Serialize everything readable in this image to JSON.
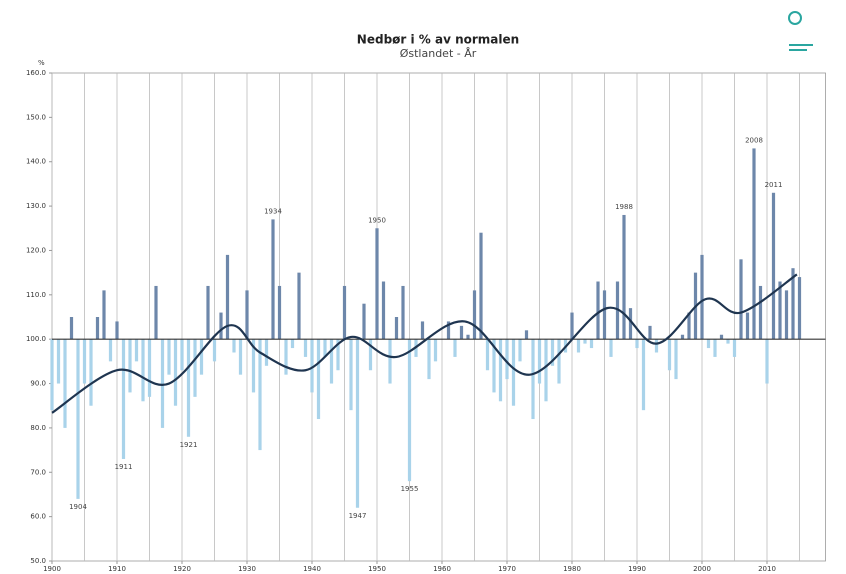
{
  "chart_data": {
    "type": "bar",
    "title": "Nedbør i % av normalen",
    "subtitle": "Østlandet - År",
    "y_label": "%",
    "x": [
      1900,
      1901,
      1902,
      1903,
      1904,
      1905,
      1906,
      1907,
      1908,
      1909,
      1910,
      1911,
      1912,
      1913,
      1914,
      1915,
      1916,
      1917,
      1918,
      1919,
      1920,
      1921,
      1922,
      1923,
      1924,
      1925,
      1926,
      1927,
      1928,
      1929,
      1930,
      1931,
      1932,
      1933,
      1934,
      1935,
      1936,
      1937,
      1938,
      1939,
      1940,
      1941,
      1942,
      1943,
      1944,
      1945,
      1946,
      1947,
      1948,
      1949,
      1950,
      1951,
      1952,
      1953,
      1954,
      1955,
      1956,
      1957,
      1958,
      1959,
      1960,
      1961,
      1962,
      1963,
      1964,
      1965,
      1966,
      1967,
      1968,
      1969,
      1970,
      1971,
      1972,
      1973,
      1974,
      1975,
      1976,
      1977,
      1978,
      1979,
      1980,
      1981,
      1982,
      1983,
      1984,
      1985,
      1986,
      1987,
      1988,
      1989,
      1990,
      1991,
      1992,
      1993,
      1994,
      1995,
      1996,
      1997,
      1998,
      1999,
      2000,
      2001,
      2002,
      2003,
      2004,
      2005,
      2006,
      2007,
      2008,
      2009,
      2010,
      2011,
      2012,
      2013,
      2014,
      2015
    ],
    "values": [
      84,
      90,
      80,
      105,
      64,
      90,
      85,
      105,
      111,
      95,
      104,
      73,
      88,
      95,
      86,
      87,
      112,
      80,
      92,
      85,
      93,
      78,
      87,
      92,
      112,
      95,
      106,
      119,
      97,
      92,
      111,
      88,
      75,
      94,
      127,
      112,
      92,
      98,
      115,
      96,
      88,
      82,
      96,
      90,
      93,
      112,
      84,
      62,
      108,
      93,
      125,
      113,
      90,
      105,
      112,
      68,
      96,
      104,
      91,
      95,
      100,
      104,
      96,
      103,
      101,
      111,
      124,
      93,
      88,
      86,
      91,
      85,
      95,
      102,
      82,
      90,
      86,
      94,
      90,
      97,
      106,
      97,
      99,
      98,
      113,
      111,
      96,
      113,
      128,
      107,
      98,
      84,
      103,
      97,
      100,
      93,
      91,
      101,
      106,
      115,
      119,
      98,
      96,
      101,
      99,
      96,
      118,
      106,
      143,
      112,
      90,
      133,
      113,
      111,
      116,
      114
    ],
    "baseline": 100,
    "positive_color": "#6d87aa",
    "negative_color": "#a9d3ea",
    "trend": {
      "color": "#1f3550",
      "x": [
        1900,
        1910,
        1918,
        1927,
        1932,
        1939,
        1946,
        1953,
        1963.5,
        1973.5,
        1985.4,
        1993,
        2000.5,
        2006,
        2014.6
      ],
      "values": [
        83.4,
        93,
        90,
        103,
        97,
        93,
        100.5,
        96,
        104,
        92,
        107,
        99,
        109,
        106,
        114.6
      ]
    },
    "annotations": [
      1904,
      1911,
      1921,
      1934,
      1947,
      1950,
      1955,
      1988,
      2008,
      2011
    ],
    "xlim": [
      1900,
      2019
    ],
    "ylim": [
      50,
      160
    ],
    "xticks": [
      1900,
      1910,
      1920,
      1930,
      1940,
      1950,
      1960,
      1970,
      1980,
      1990,
      2000,
      2010
    ],
    "xgrid": [
      1900,
      1905,
      1910,
      1915,
      1920,
      1925,
      1930,
      1935,
      1940,
      1945,
      1950,
      1955,
      1960,
      1965,
      1970,
      1975,
      1980,
      1985,
      1990,
      1995,
      2000,
      2005,
      2010,
      2015
    ],
    "yticks": [
      {
        "value": 50,
        "label": "50.0"
      },
      {
        "value": 60,
        "label": "60.0"
      },
      {
        "value": 70,
        "label": "70.0"
      },
      {
        "value": 80,
        "label": "80.0"
      },
      {
        "value": 90,
        "label": "90.0"
      },
      {
        "value": 100,
        "label": "100.0"
      },
      {
        "value": 110,
        "label": "110.0"
      },
      {
        "value": 120,
        "label": "120.0"
      },
      {
        "value": 130,
        "label": "130.0"
      },
      {
        "value": 140,
        "label": "140.0"
      },
      {
        "value": 150,
        "label": "150.0"
      },
      {
        "value": 160,
        "label": "160.0"
      }
    ]
  }
}
